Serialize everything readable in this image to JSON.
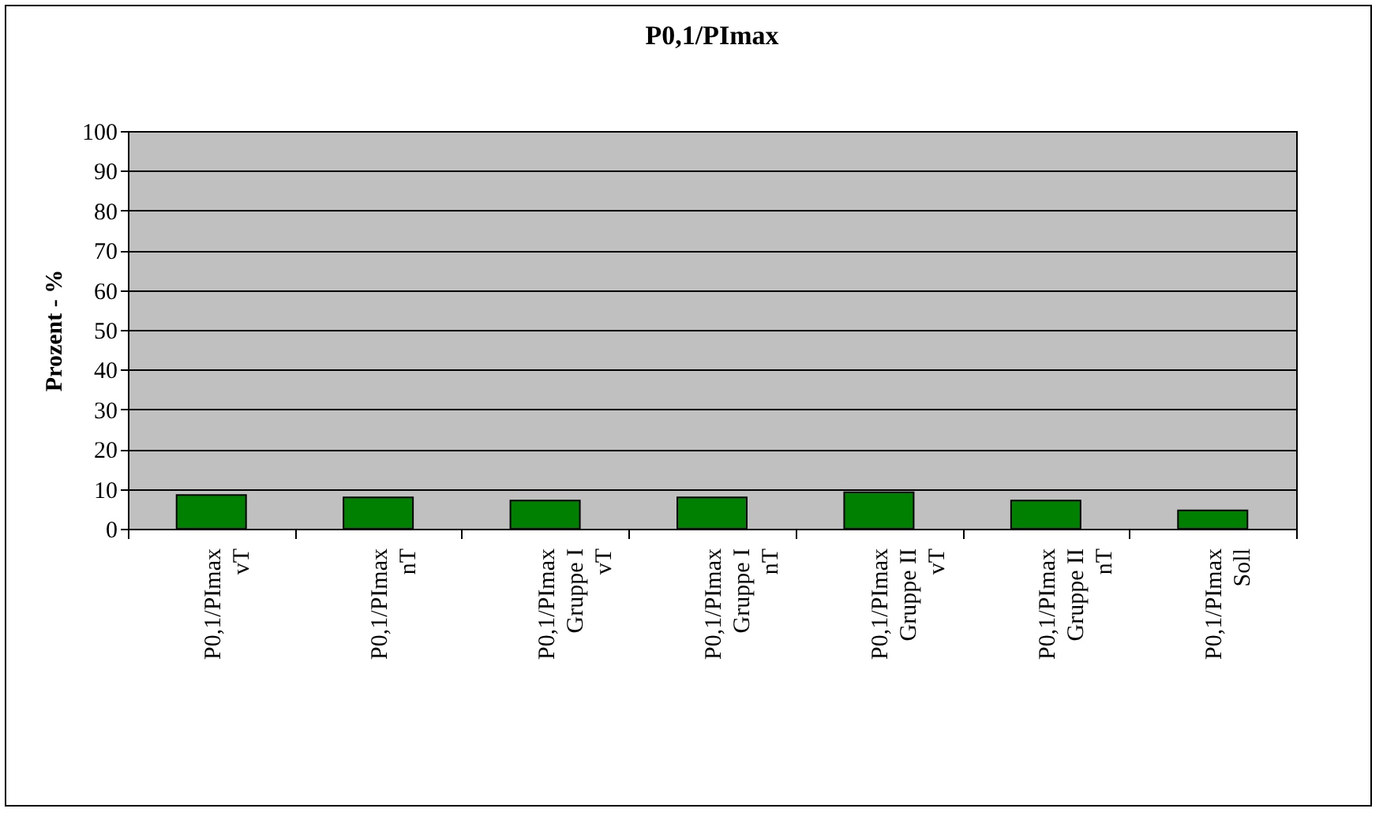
{
  "chart_data": {
    "type": "bar",
    "title": "P0,1/PImax",
    "ylabel": "Prozent - %",
    "categories": [
      "P0,1/PImax\nvT",
      "P0,1/PImax\nnT",
      "P0,1/PImax\nGruppe I\nvT",
      "P0,1/PImax\nGruppe I\nnT",
      "P0,1/PImax\nGruppe II\nvT",
      "P0,1/PImax\nGruppe II\nnT",
      "P0,1/PImax\nSoll"
    ],
    "values": [
      8.5,
      7.9,
      7.1,
      7.9,
      9.2,
      7.1,
      4.6
    ],
    "color": "#008000",
    "ylim": [
      0,
      100
    ],
    "yticks": [
      0,
      10,
      20,
      30,
      40,
      50,
      60,
      70,
      80,
      90,
      100
    ],
    "grid": "y",
    "legend": false
  }
}
